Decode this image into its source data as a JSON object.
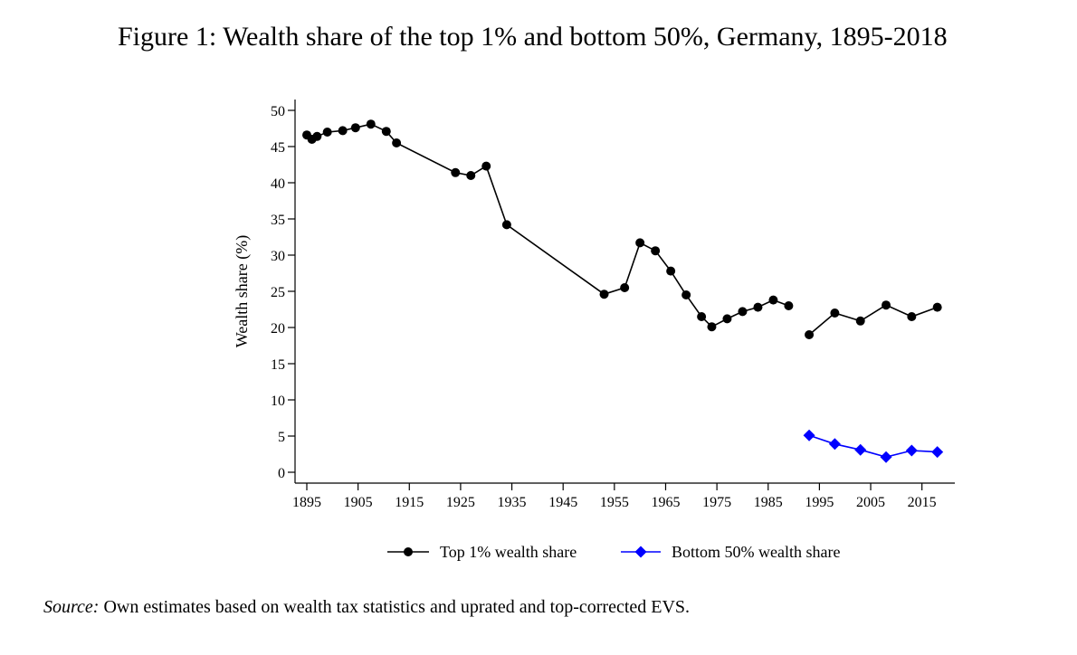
{
  "figure": {
    "title": "Figure 1: Wealth share of the top 1% and bottom 50%, Germany, 1895-2018"
  },
  "source": {
    "label": "Source:",
    "text": "Own estimates based on wealth tax statistics and uprated and top-corrected EVS."
  },
  "chart_data": {
    "type": "line",
    "title": "Wealth share of the top 1% and bottom 50%, Germany, 1895-2018",
    "xlabel": "",
    "ylabel": "Wealth share (%)",
    "xlim": [
      1895,
      2020
    ],
    "ylim": [
      0,
      50
    ],
    "x_ticks": [
      1895,
      1905,
      1915,
      1925,
      1935,
      1945,
      1955,
      1965,
      1975,
      1985,
      1995,
      2005,
      2015
    ],
    "y_ticks": [
      0,
      5,
      10,
      15,
      20,
      25,
      30,
      35,
      40,
      45,
      50
    ],
    "legend_position": "bottom",
    "grid": false,
    "series": [
      {
        "name": "Top 1% wealth share",
        "color": "#000000",
        "marker": "circle",
        "segments": [
          [
            [
              1895,
              46.6
            ],
            [
              1896,
              46.0
            ],
            [
              1897,
              46.4
            ],
            [
              1899,
              47.0
            ],
            [
              1902,
              47.2
            ],
            [
              1904.5,
              47.6
            ],
            [
              1907.5,
              48.1
            ],
            [
              1910.5,
              47.1
            ],
            [
              1912.5,
              45.5
            ],
            [
              1924,
              41.4
            ],
            [
              1927,
              41.0
            ],
            [
              1930,
              42.3
            ],
            [
              1934,
              34.2
            ],
            [
              1953,
              24.6
            ],
            [
              1957,
              25.5
            ],
            [
              1960,
              31.7
            ],
            [
              1963,
              30.6
            ],
            [
              1966,
              27.8
            ],
            [
              1969,
              24.5
            ],
            [
              1972,
              21.5
            ],
            [
              1974,
              20.1
            ],
            [
              1977,
              21.2
            ],
            [
              1980,
              22.2
            ],
            [
              1983,
              22.8
            ],
            [
              1986,
              23.8
            ],
            [
              1989,
              23.0
            ]
          ],
          [
            [
              1993,
              19.0
            ],
            [
              1998,
              22.0
            ],
            [
              2003,
              20.9
            ],
            [
              2008,
              23.1
            ],
            [
              2013,
              21.5
            ],
            [
              2018,
              22.8
            ]
          ]
        ]
      },
      {
        "name": "Bottom 50% wealth share",
        "color": "#0000ff",
        "marker": "diamond",
        "segments": [
          [
            [
              1993,
              5.1
            ],
            [
              1998,
              3.9
            ],
            [
              2003,
              3.1
            ],
            [
              2008,
              2.1
            ],
            [
              2013,
              3.0
            ],
            [
              2018,
              2.8
            ]
          ]
        ]
      }
    ]
  }
}
